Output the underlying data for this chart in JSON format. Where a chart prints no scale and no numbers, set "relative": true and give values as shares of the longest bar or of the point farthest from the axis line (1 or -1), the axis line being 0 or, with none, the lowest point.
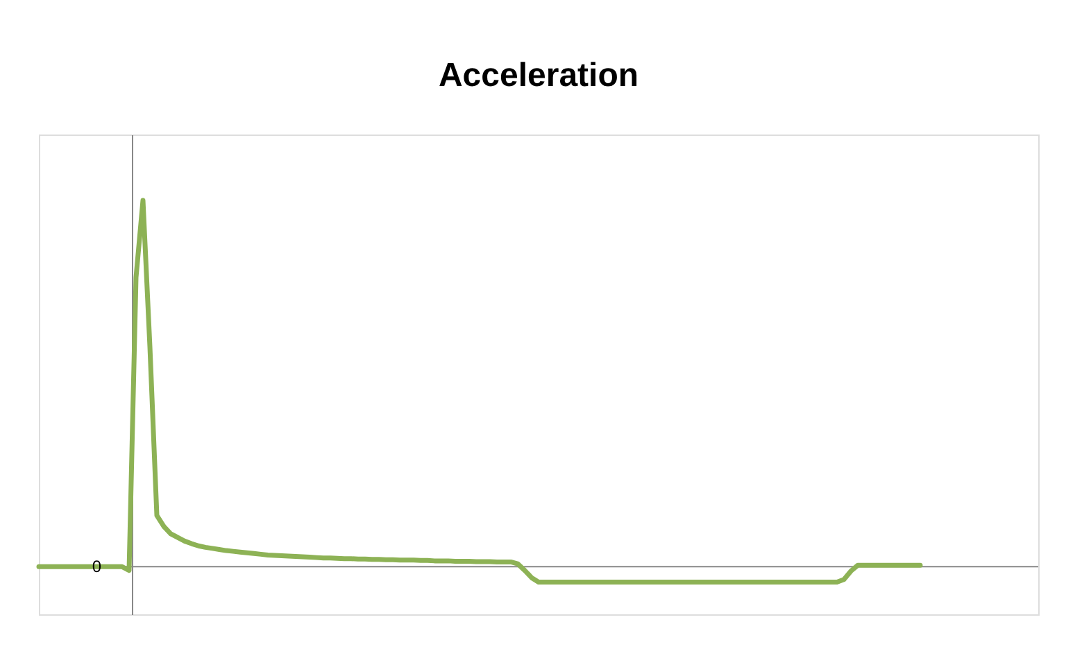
{
  "chart_data": {
    "type": "line",
    "title": "Acceleration",
    "relative": true,
    "grid": false,
    "marker": "none",
    "line_style": "solid",
    "annotations": [
      {
        "text": "0",
        "y": 0
      }
    ],
    "categories": [
      null,
      null,
      null,
      null,
      null,
      null,
      null,
      null,
      null,
      null,
      null,
      null,
      null,
      null,
      null,
      null,
      null,
      null,
      null,
      null,
      null,
      null,
      null,
      null,
      null,
      null,
      null,
      null,
      null,
      null,
      null,
      null,
      null,
      null,
      null,
      null,
      null,
      null,
      null,
      null,
      null,
      null,
      null,
      null,
      null,
      null,
      null,
      null,
      null,
      null,
      null,
      null,
      null,
      null,
      null,
      null,
      null,
      null,
      null,
      null,
      null,
      null,
      null,
      null,
      null,
      null,
      null,
      null,
      null,
      null,
      null,
      null,
      null,
      null,
      null,
      null,
      null,
      null,
      null,
      null,
      null,
      null,
      null,
      null,
      null,
      null,
      null,
      null,
      null,
      null,
      null,
      null,
      null,
      null,
      null,
      null,
      null,
      null,
      null,
      null,
      null,
      null,
      null,
      null,
      null,
      null,
      null,
      null,
      null,
      null,
      null,
      null,
      null,
      null,
      null,
      null,
      null,
      null,
      null,
      null,
      null,
      null,
      null,
      null,
      null,
      null,
      null,
      null,
      null,
      null,
      null,
      null,
      null,
      null,
      null,
      null,
      null,
      null,
      null,
      null,
      null,
      null,
      null,
      null,
      null
    ],
    "series": [
      {
        "color": "#8db255",
        "values": [
          0,
          0,
          0,
          0,
          0,
          0,
          0,
          0,
          0,
          0,
          0,
          0,
          0,
          -0.01,
          0.79,
          1,
          0.6,
          0.14,
          0.11,
          0.09,
          0.08,
          0.07,
          0.063,
          0.057,
          0.053,
          0.05,
          0.047,
          0.044,
          0.042,
          0.04,
          0.038,
          0.036,
          0.034,
          0.032,
          0.031,
          0.03,
          0.029,
          0.028,
          0.027,
          0.026,
          0.025,
          0.024,
          0.024,
          0.023,
          0.022,
          0.022,
          0.021,
          0.021,
          0.02,
          0.02,
          0.019,
          0.019,
          0.018,
          0.018,
          0.018,
          0.017,
          0.017,
          0.016,
          0.016,
          0.016,
          0.015,
          0.015,
          0.015,
          0.014,
          0.014,
          0.014,
          0.013,
          0.013,
          0.013,
          0.008,
          -0.01,
          -0.03,
          -0.042,
          -0.042,
          -0.042,
          -0.042,
          -0.042,
          -0.042,
          -0.042,
          -0.042,
          -0.042,
          -0.042,
          -0.042,
          -0.042,
          -0.042,
          -0.042,
          -0.042,
          -0.042,
          -0.042,
          -0.042,
          -0.042,
          -0.042,
          -0.042,
          -0.042,
          -0.042,
          -0.042,
          -0.042,
          -0.042,
          -0.042,
          -0.042,
          -0.042,
          -0.042,
          -0.042,
          -0.042,
          -0.042,
          -0.042,
          -0.042,
          -0.042,
          -0.042,
          -0.042,
          -0.042,
          -0.042,
          -0.042,
          -0.042,
          -0.042,
          -0.042,
          -0.035,
          -0.012,
          0.004,
          0.004,
          0.004,
          0.004,
          0.004,
          0.004,
          0.004,
          0.004,
          0.004,
          0.004,
          null,
          null,
          null,
          null,
          null,
          null,
          null,
          null,
          null,
          null,
          null,
          null,
          null,
          null,
          null,
          null,
          null
        ]
      }
    ]
  }
}
